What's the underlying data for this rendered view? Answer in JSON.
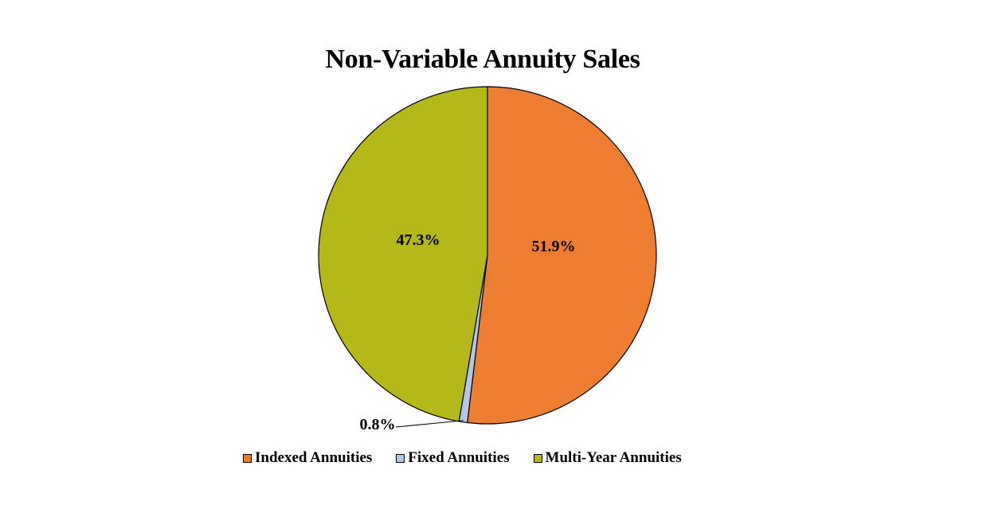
{
  "chart_data": {
    "type": "pie",
    "title": "Non-Variable Annuity Sales",
    "categories": [
      "Indexed Annuities",
      "Fixed Annuities",
      "Multi-Year Annuities"
    ],
    "values": [
      51.9,
      0.8,
      47.3
    ],
    "labels": [
      "51.9%",
      "0.8%",
      "47.3%"
    ],
    "colors": [
      "#ED7D31",
      "#B4C7E7",
      "#B5B819"
    ],
    "start_angle": "12 o'clock",
    "direction": "clockwise",
    "legend_position": "bottom"
  }
}
